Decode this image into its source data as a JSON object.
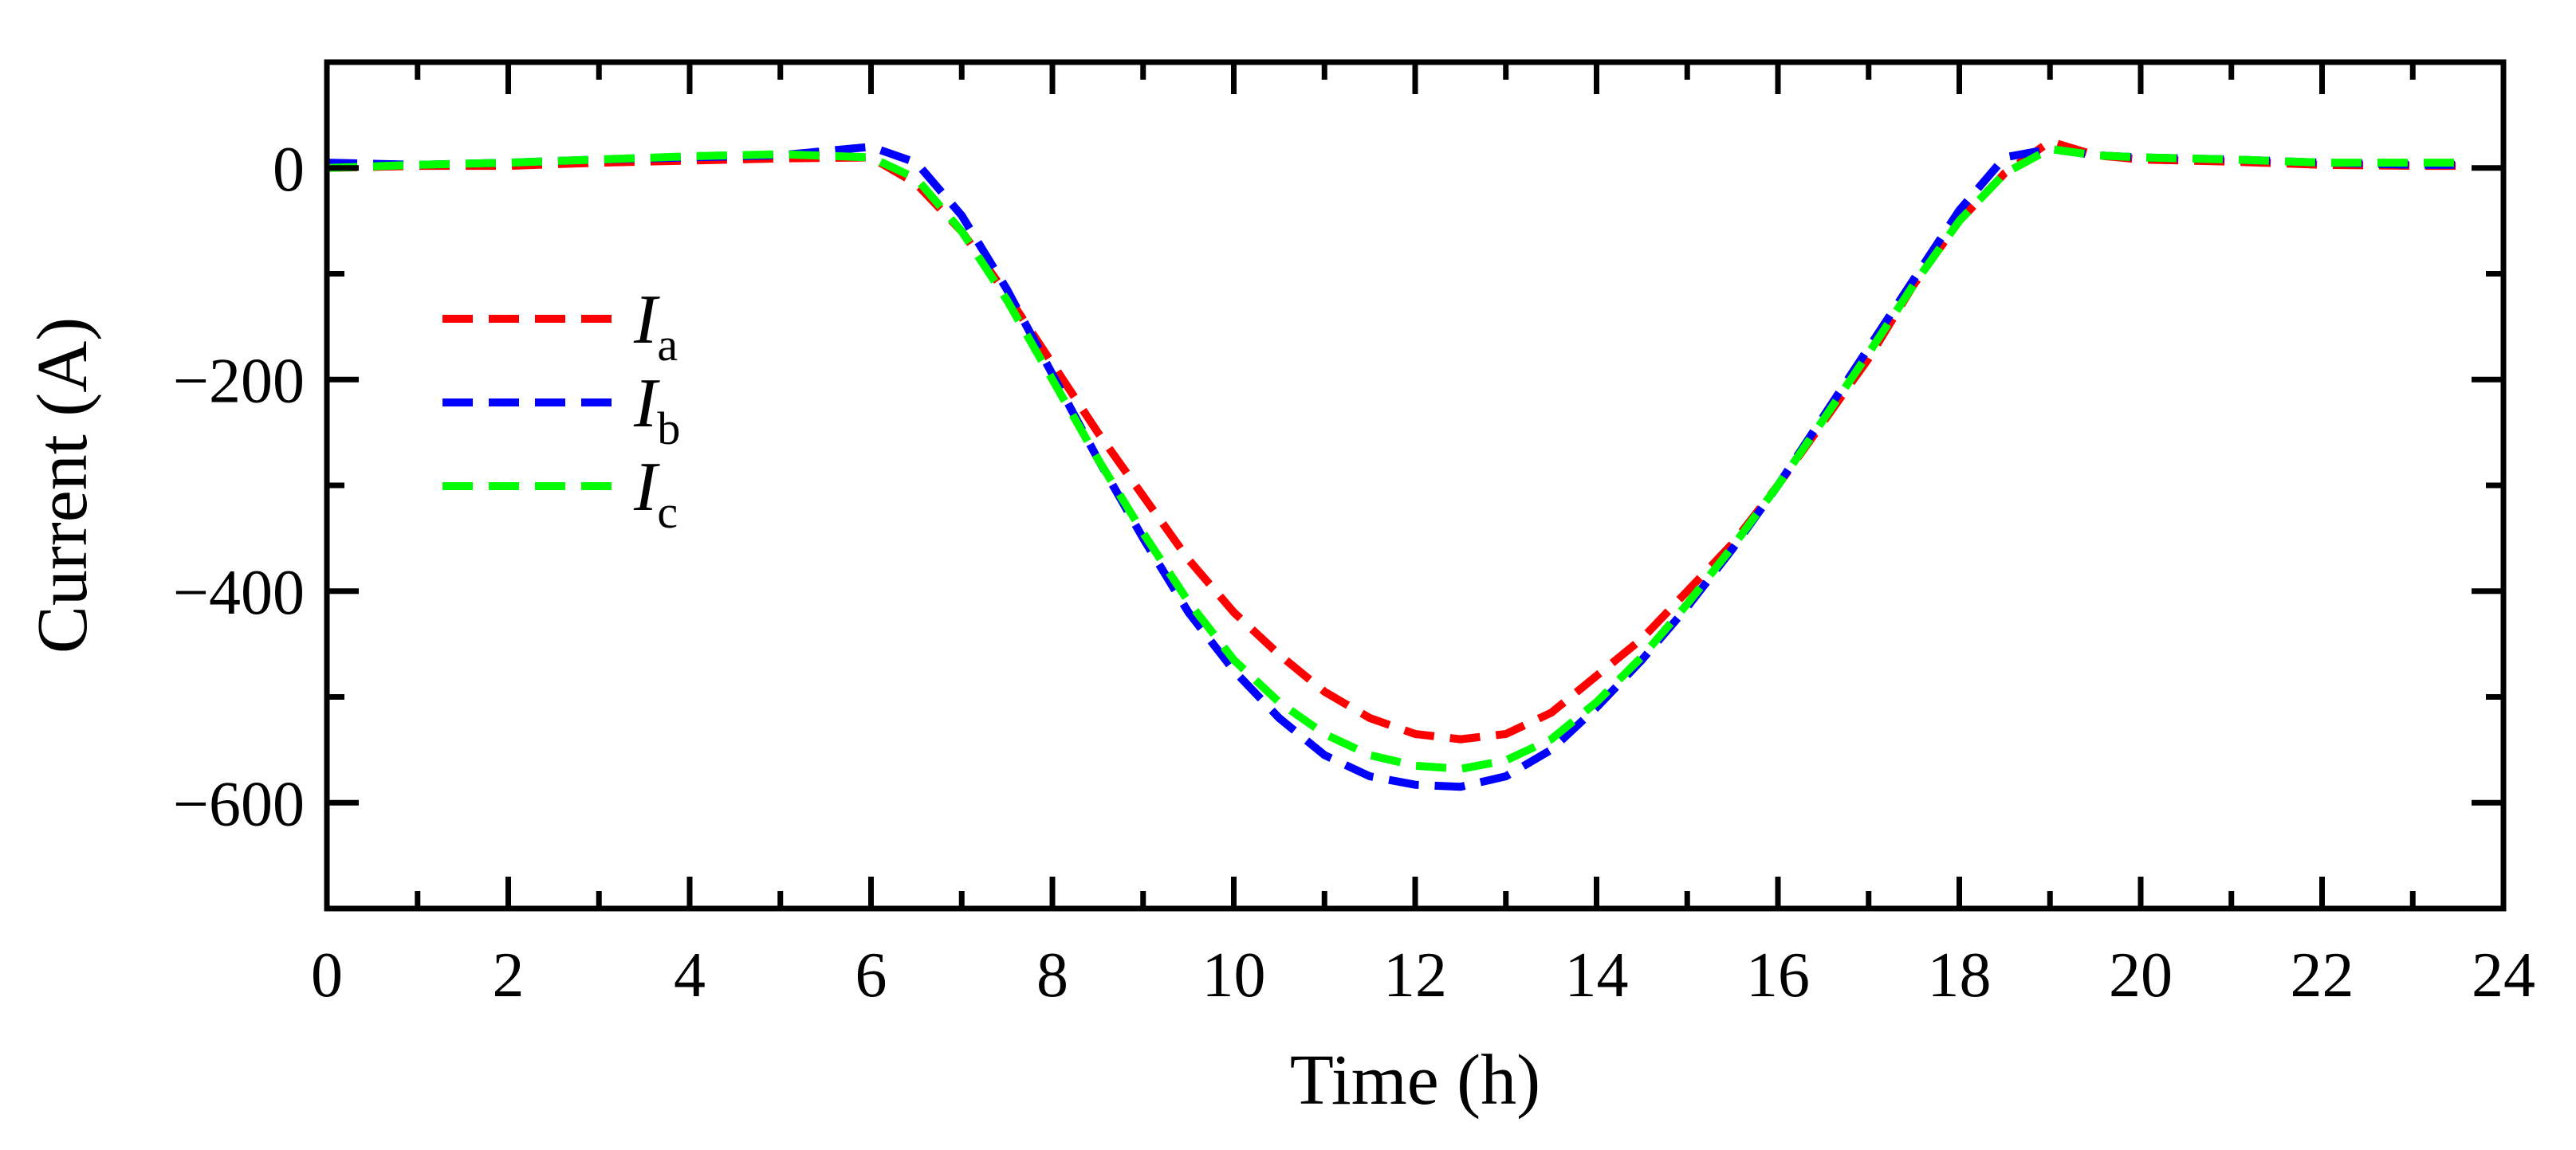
{
  "chart_data": {
    "type": "line",
    "title": "",
    "xlabel": "Time (h)",
    "ylabel": "Current (A)",
    "xlim": [
      0,
      24
    ],
    "ylim": [
      -700,
      100
    ],
    "xticks": [
      0,
      2,
      4,
      6,
      8,
      10,
      12,
      14,
      16,
      18,
      20,
      22,
      24
    ],
    "xtick_labels": [
      "0",
      "2",
      "4",
      "6",
      "8",
      "10",
      "12",
      "14",
      "16",
      "18",
      "20",
      "22",
      "24"
    ],
    "yticks": [
      0,
      -200,
      -400,
      -600
    ],
    "ytick_labels": [
      "0",
      "−200",
      "−400",
      "−600"
    ],
    "x_minor_ticks": [
      1,
      3,
      5,
      7,
      9,
      11,
      13,
      15,
      17,
      19,
      21,
      23
    ],
    "y_minor_ticks": [
      -100,
      -300,
      -500
    ],
    "grid": false,
    "legend_position": "upper-left",
    "series": [
      {
        "name": "Ia",
        "label_main": "I",
        "label_sub": "a",
        "color": "#ff0000",
        "x": [
          0,
          1,
          2,
          3,
          4,
          5,
          6,
          6.5,
          7,
          7.5,
          8,
          8.5,
          9,
          9.5,
          10,
          10.5,
          11,
          11.5,
          12,
          12.5,
          13,
          13.5,
          14,
          14.5,
          15,
          15.5,
          16,
          16.5,
          17,
          17.5,
          18,
          18.5,
          19,
          19.5,
          20,
          21,
          22,
          23,
          23.6
        ],
        "y": [
          0,
          2,
          2,
          5,
          7,
          9,
          10,
          -15,
          -60,
          -120,
          -185,
          -250,
          -310,
          -370,
          -420,
          -460,
          -495,
          -520,
          -535,
          -540,
          -535,
          -515,
          -480,
          -445,
          -400,
          -355,
          -300,
          -240,
          -180,
          -110,
          -50,
          -5,
          25,
          12,
          8,
          6,
          3,
          2,
          2
        ]
      },
      {
        "name": "Ib",
        "label_main": "I",
        "label_sub": "b",
        "color": "#0000ff",
        "x": [
          0,
          1,
          2,
          3,
          4,
          5,
          6,
          6.5,
          7,
          7.5,
          8,
          8.5,
          9,
          9.5,
          10,
          10.5,
          11,
          11.5,
          12,
          12.5,
          13,
          13.5,
          14,
          14.5,
          15,
          15.5,
          16,
          16.5,
          17,
          17.5,
          18,
          18.5,
          19,
          19.5,
          20,
          21,
          22,
          23,
          23.6
        ],
        "y": [
          5,
          3,
          5,
          8,
          10,
          12,
          20,
          5,
          -45,
          -115,
          -195,
          -275,
          -350,
          -420,
          -475,
          -520,
          -555,
          -575,
          -583,
          -585,
          -575,
          -550,
          -510,
          -465,
          -415,
          -360,
          -300,
          -235,
          -170,
          -105,
          -40,
          10,
          18,
          12,
          10,
          8,
          5,
          3,
          3
        ]
      },
      {
        "name": "Ic",
        "label_main": "I",
        "label_sub": "c",
        "color": "#00ff00",
        "x": [
          0,
          1,
          2,
          3,
          4,
          5,
          6,
          6.5,
          7,
          7.5,
          8,
          8.5,
          9,
          9.5,
          10,
          10.5,
          11,
          11.5,
          12,
          12.5,
          13,
          13.5,
          14,
          14.5,
          15,
          15.5,
          16,
          16.5,
          17,
          17.5,
          18,
          18.5,
          19,
          19.5,
          20,
          21,
          22,
          23,
          23.6
        ],
        "y": [
          0,
          3,
          5,
          8,
          11,
          13,
          10,
          -10,
          -60,
          -125,
          -200,
          -275,
          -345,
          -410,
          -465,
          -505,
          -535,
          -555,
          -565,
          -568,
          -560,
          -540,
          -505,
          -462,
          -412,
          -358,
          -300,
          -238,
          -175,
          -110,
          -50,
          -5,
          18,
          12,
          10,
          8,
          5,
          5,
          5
        ]
      }
    ]
  }
}
